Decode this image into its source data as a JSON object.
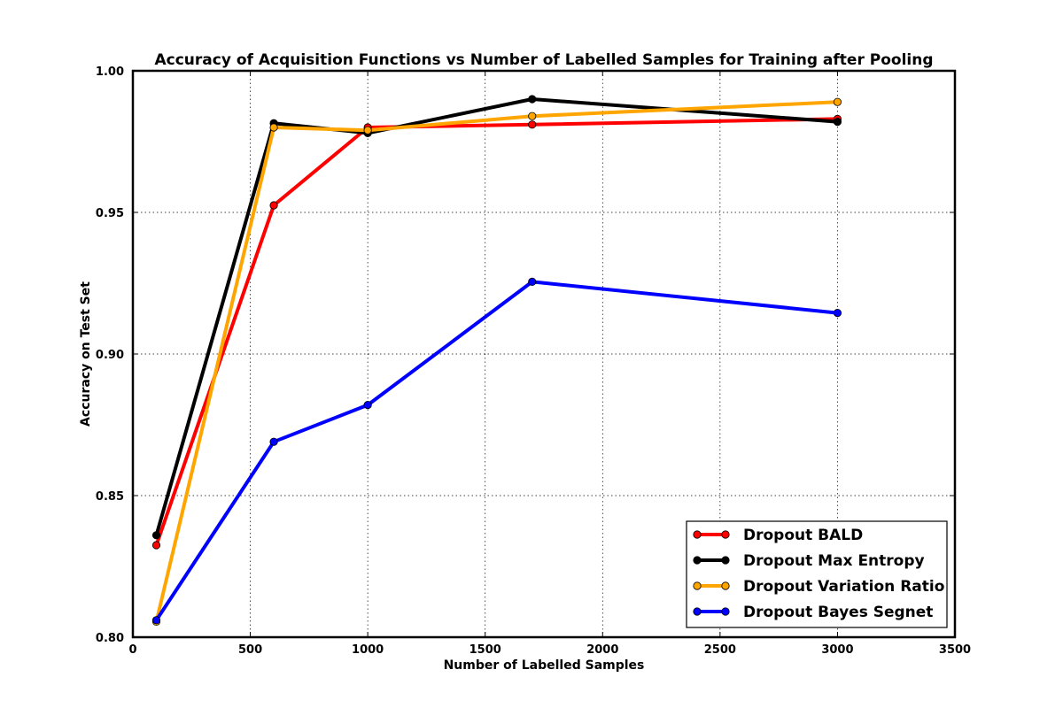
{
  "chart_data": {
    "type": "line",
    "title": "Accuracy of Acquisition Functions vs Number of Labelled Samples for Training after Pooling",
    "xlabel": "Number of Labelled Samples",
    "ylabel": "Accuracy on Test Set",
    "xlim": [
      0,
      3500
    ],
    "ylim": [
      0.8,
      1.0
    ],
    "xticks": [
      0,
      500,
      1000,
      1500,
      2000,
      2500,
      3000,
      3500
    ],
    "xtick_labels": [
      "0",
      "500",
      "1000",
      "1500",
      "2000",
      "2500",
      "3000",
      "3500"
    ],
    "yticks": [
      0.8,
      0.85,
      0.9,
      0.95,
      1.0
    ],
    "ytick_labels": [
      "0.80",
      "0.85",
      "0.90",
      "0.95",
      "1.00"
    ],
    "grid": true,
    "legend_position": "bottom-right",
    "x": [
      100,
      600,
      1000,
      1700,
      3000
    ],
    "series": [
      {
        "name": "Dropout BALD",
        "color": "#ff0000",
        "values": [
          0.8325,
          0.9525,
          0.98,
          0.981,
          0.983
        ]
      },
      {
        "name": "Dropout Max Entropy",
        "color": "#000000",
        "values": [
          0.836,
          0.9815,
          0.978,
          0.99,
          0.982
        ]
      },
      {
        "name": "Dropout Variation Ratio",
        "color": "#ffa500",
        "values": [
          0.8055,
          0.98,
          0.979,
          0.984,
          0.989
        ]
      },
      {
        "name": "Dropout Bayes Segnet",
        "color": "#0000ff",
        "values": [
          0.806,
          0.869,
          0.882,
          0.9255,
          0.9145
        ]
      }
    ]
  }
}
